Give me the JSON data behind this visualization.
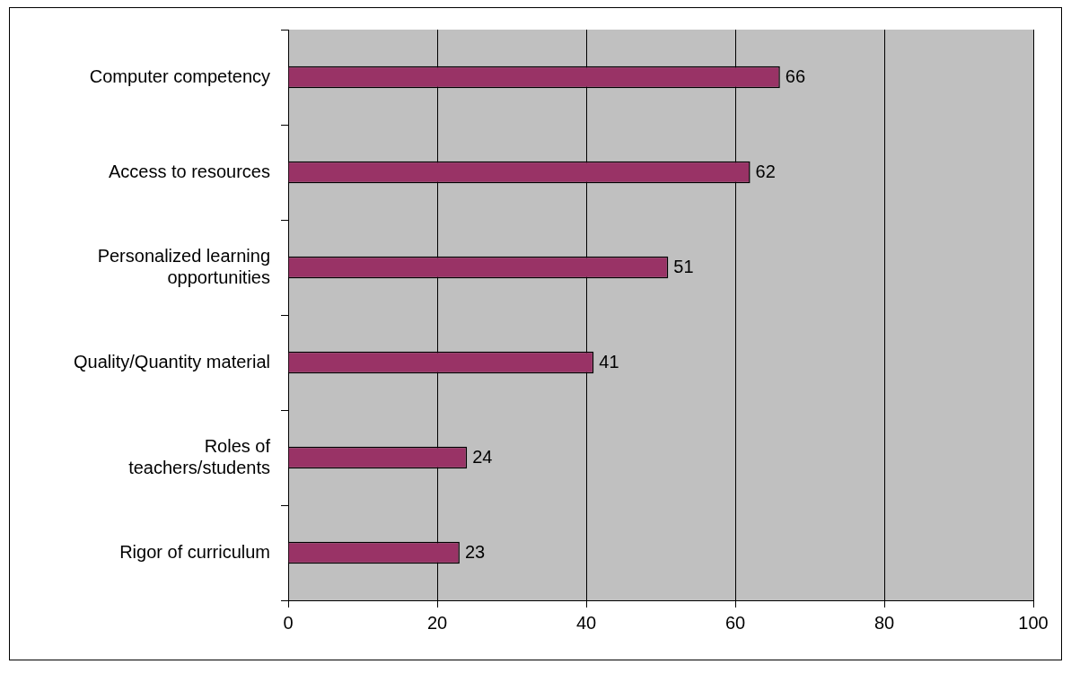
{
  "chart_data": {
    "type": "bar",
    "orientation": "horizontal",
    "categories": [
      "Computer competency",
      "Access to resources",
      "Personalized learning opportunities",
      "Quality/Quantity material",
      "Roles of teachers/students",
      "Rigor of curriculum"
    ],
    "values": [
      66,
      62,
      51,
      41,
      24,
      23
    ],
    "color": "#993366",
    "xlim": [
      0,
      100
    ],
    "xticks": [
      0,
      20,
      40,
      60,
      80,
      100
    ],
    "grid": "x",
    "data_labels": true
  }
}
